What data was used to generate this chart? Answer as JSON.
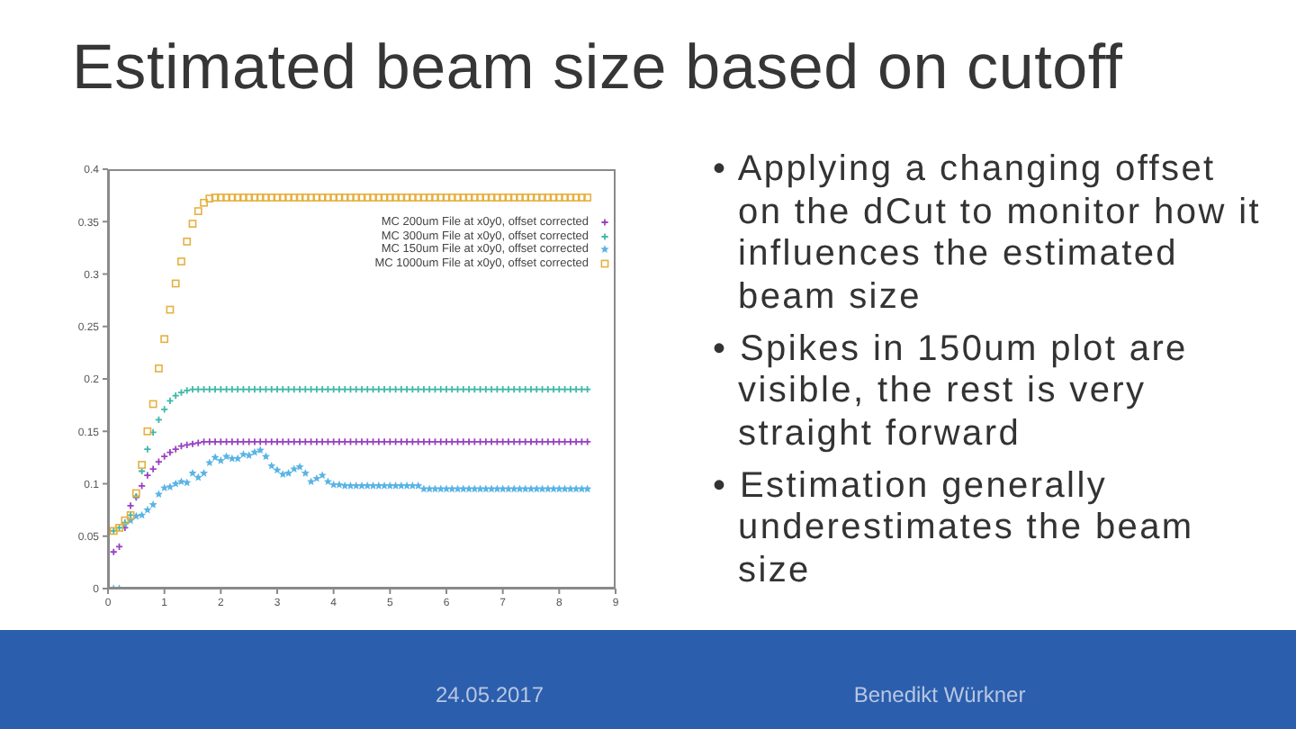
{
  "chart_data": {
    "type": "scatter",
    "title": "Estimated beam size based on cutoff",
    "annotations": [
      "• Applying a changing offset on the dCut to monitor how it influences the estimated beam size",
      "• Spikes in 150um plot are visible, the rest is very straight forward",
      "• Estimation generally underestimates the beam size",
      "24.05.2017",
      "Benedikt Würkner"
    ],
    "x": [
      0.1,
      0.2,
      0.3,
      0.4,
      0.5,
      0.6,
      0.7,
      0.8,
      0.9,
      1,
      1.1,
      1.2,
      1.3,
      1.4,
      1.5,
      1.6,
      1.7,
      1.8,
      1.9,
      2,
      2.1,
      2.2,
      2.3,
      2.4,
      2.5,
      2.6,
      2.7,
      2.8,
      2.9,
      3,
      3.1,
      3.2,
      3.3,
      3.4,
      3.5,
      3.6,
      3.7,
      3.8,
      3.9,
      4,
      4.1,
      4.2,
      4.3,
      4.4,
      4.5,
      4.6,
      4.7,
      4.8,
      4.9,
      5,
      5.1,
      5.2,
      5.3,
      5.4,
      5.5,
      5.6,
      5.7,
      5.8,
      5.9,
      6,
      6.1,
      6.2,
      6.3,
      6.4,
      6.5,
      6.6,
      6.7,
      6.8,
      6.9,
      7,
      7.1,
      7.2,
      7.3,
      7.4,
      7.5,
      7.6,
      7.7,
      7.8,
      7.9,
      8,
      8.1,
      8.2,
      8.3,
      8.4,
      8.5
    ],
    "series": [
      {
        "name": "MC 200um File at x0y0, offset corrected",
        "color": "#9b3fc0",
        "marker": "cross",
        "values": [
          0.035,
          0.04,
          0.058,
          0.079,
          0.087,
          0.098,
          0.108,
          0.114,
          0.121,
          0.126,
          0.13,
          0.133,
          0.136,
          0.137,
          0.138,
          0.139,
          0.14,
          0.14,
          0.14,
          0.14,
          0.14,
          0.14,
          0.14,
          0.14,
          0.14,
          0.14,
          0.14,
          0.14,
          0.14,
          0.14,
          0.14,
          0.14,
          0.14,
          0.14,
          0.14,
          0.14,
          0.14,
          0.14,
          0.14,
          0.14,
          0.14,
          0.14,
          0.14,
          0.14,
          0.14,
          0.14,
          0.14,
          0.14,
          0.14,
          0.14,
          0.14,
          0.14,
          0.14,
          0.14,
          0.14,
          0.14,
          0.14,
          0.14,
          0.14,
          0.14,
          0.14,
          0.14,
          0.14,
          0.14,
          0.14,
          0.14,
          0.14,
          0.14,
          0.14,
          0.14,
          0.14,
          0.14,
          0.14,
          0.14,
          0.14,
          0.14,
          0.14,
          0.14,
          0.14,
          0.14,
          0.14,
          0.14,
          0.14,
          0.14,
          0.14
        ]
      },
      {
        "name": "MC 300um File at x0y0, offset corrected",
        "color": "#3fb8a8",
        "marker": "cross",
        "values": [
          0.055,
          0.058,
          0.063,
          0.07,
          0.088,
          0.112,
          0.133,
          0.149,
          0.161,
          0.171,
          0.179,
          0.184,
          0.187,
          0.189,
          0.19,
          0.19,
          0.19,
          0.19,
          0.19,
          0.19,
          0.19,
          0.19,
          0.19,
          0.19,
          0.19,
          0.19,
          0.19,
          0.19,
          0.19,
          0.19,
          0.19,
          0.19,
          0.19,
          0.19,
          0.19,
          0.19,
          0.19,
          0.19,
          0.19,
          0.19,
          0.19,
          0.19,
          0.19,
          0.19,
          0.19,
          0.19,
          0.19,
          0.19,
          0.19,
          0.19,
          0.19,
          0.19,
          0.19,
          0.19,
          0.19,
          0.19,
          0.19,
          0.19,
          0.19,
          0.19,
          0.19,
          0.19,
          0.19,
          0.19,
          0.19,
          0.19,
          0.19,
          0.19,
          0.19,
          0.19,
          0.19,
          0.19,
          0.19,
          0.19,
          0.19,
          0.19,
          0.19,
          0.19,
          0.19,
          0.19,
          0.19,
          0.19,
          0.19,
          0.19,
          0.19
        ]
      },
      {
        "name": "MC 150um File at x0y0, offset corrected",
        "color": "#5ab4e5",
        "marker": "star",
        "values": [
          0,
          0,
          0.061,
          0.065,
          0.069,
          0.07,
          0.075,
          0.08,
          0.09,
          0.096,
          0.097,
          0.1,
          0.102,
          0.101,
          0.11,
          0.106,
          0.11,
          0.12,
          0.125,
          0.122,
          0.126,
          0.124,
          0.124,
          0.128,
          0.127,
          0.13,
          0.132,
          0.126,
          0.117,
          0.113,
          0.109,
          0.11,
          0.114,
          0.116,
          0.11,
          0.102,
          0.105,
          0.108,
          0.102,
          0.099,
          0.099,
          0.098,
          0.098,
          0.098,
          0.098,
          0.098,
          0.098,
          0.098,
          0.098,
          0.098,
          0.098,
          0.098,
          0.098,
          0.098,
          0.098,
          0.095,
          0.095,
          0.095,
          0.095,
          0.095,
          0.095,
          0.095,
          0.095,
          0.095,
          0.095,
          0.095,
          0.095,
          0.095,
          0.095,
          0.095,
          0.095,
          0.095,
          0.095,
          0.095,
          0.095,
          0.095,
          0.095,
          0.095,
          0.095,
          0.095,
          0.095,
          0.095,
          0.095,
          0.095,
          0.095
        ]
      },
      {
        "name": "MC 1000um File at x0y0, offset corrected",
        "color": "#e6b040",
        "marker": "square",
        "values": [
          0.055,
          0.058,
          0.065,
          0.07,
          0.091,
          0.118,
          0.15,
          0.176,
          0.21,
          0.238,
          0.266,
          0.291,
          0.312,
          0.331,
          0.348,
          0.36,
          0.368,
          0.372,
          0.373,
          0.373,
          0.373,
          0.373,
          0.373,
          0.373,
          0.373,
          0.373,
          0.373,
          0.373,
          0.373,
          0.373,
          0.373,
          0.373,
          0.373,
          0.373,
          0.373,
          0.373,
          0.373,
          0.373,
          0.373,
          0.373,
          0.373,
          0.373,
          0.373,
          0.373,
          0.373,
          0.373,
          0.373,
          0.373,
          0.373,
          0.373,
          0.373,
          0.373,
          0.373,
          0.373,
          0.373,
          0.373,
          0.373,
          0.373,
          0.373,
          0.373,
          0.373,
          0.373,
          0.373,
          0.373,
          0.373,
          0.373,
          0.373,
          0.373,
          0.373,
          0.373,
          0.373,
          0.373,
          0.373,
          0.373,
          0.373,
          0.373,
          0.373,
          0.373,
          0.373,
          0.373,
          0.373,
          0.373,
          0.373,
          0.373,
          0.373
        ]
      }
    ],
    "xlim": [
      0,
      9
    ],
    "xticks": [
      0,
      1,
      2,
      3,
      4,
      5,
      6,
      7,
      8,
      9
    ],
    "ylim": [
      0,
      0.4
    ],
    "yticks": [
      0,
      0.05,
      0.1,
      0.15,
      0.2,
      0.25,
      0.3,
      0.35,
      0.4
    ],
    "legend": "top right"
  }
}
